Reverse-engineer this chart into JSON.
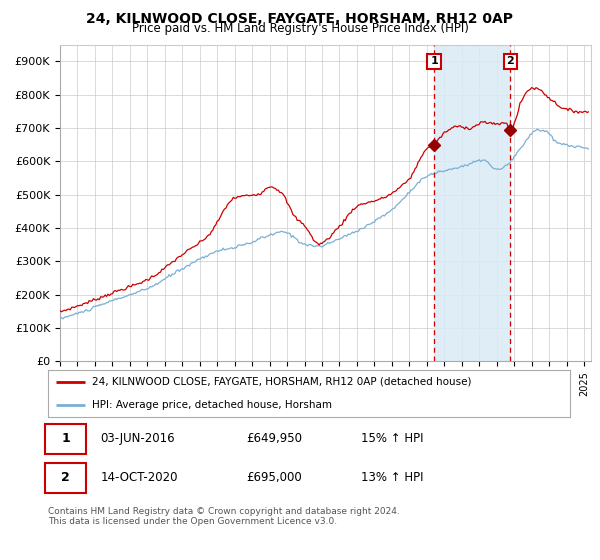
{
  "title1": "24, KILNWOOD CLOSE, FAYGATE, HORSHAM, RH12 0AP",
  "title2": "Price paid vs. HM Land Registry's House Price Index (HPI)",
  "ylabel_ticks": [
    "£0",
    "£100K",
    "£200K",
    "£300K",
    "£400K",
    "£500K",
    "£600K",
    "£700K",
    "£800K",
    "£900K"
  ],
  "ytick_values": [
    0,
    100000,
    200000,
    300000,
    400000,
    500000,
    600000,
    700000,
    800000,
    900000
  ],
  "hpi_line_color": "#7bafd4",
  "price_line_color": "#cc0000",
  "marker_color": "#990000",
  "vline_color": "#cc0000",
  "annotation_box_color": "#cc0000",
  "shade_color": "#daeaf5",
  "legend_label_price": "24, KILNWOOD CLOSE, FAYGATE, HORSHAM, RH12 0AP (detached house)",
  "legend_label_hpi": "HPI: Average price, detached house, Horsham",
  "sale1_date": "03-JUN-2016",
  "sale1_price": 649950,
  "sale1_pct": "15%",
  "sale1_year": 2016.42,
  "sale2_date": "14-OCT-2020",
  "sale2_price": 695000,
  "sale2_pct": "13%",
  "sale2_year": 2020.79,
  "footnote": "Contains HM Land Registry data © Crown copyright and database right 2024.\nThis data is licensed under the Open Government Licence v3.0.",
  "start_year": 1995,
  "end_year": 2025,
  "ylim_max": 950000,
  "fig_bg": "#ffffff",
  "plot_bg": "#ffffff",
  "grid_color": "#cccccc"
}
